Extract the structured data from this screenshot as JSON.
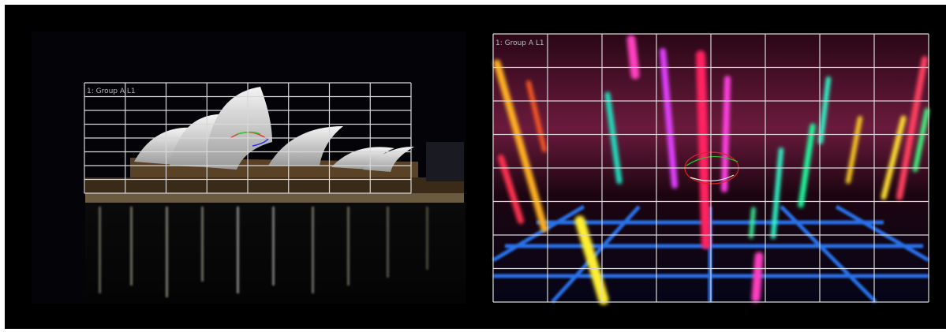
{
  "left_panel": {
    "label": "1: Group A L1"
  },
  "right_panel": {
    "label": "1: Group A L1"
  }
}
